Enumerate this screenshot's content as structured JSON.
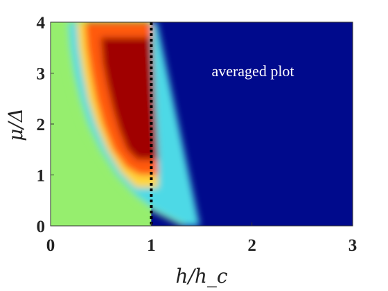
{
  "chart_data": {
    "type": "heatmap",
    "xlabel": "h/h_c",
    "ylabel": "μ/Δ",
    "xlim": [
      0,
      3
    ],
    "ylim": [
      0,
      4
    ],
    "x_ticks": [
      "0",
      "1",
      "2",
      "3"
    ],
    "y_ticks": [
      "0",
      "1",
      "2",
      "3",
      "4"
    ],
    "x_tick_values": [
      0,
      1,
      2,
      3
    ],
    "y_tick_values": [
      0,
      1,
      2,
      3,
      4
    ],
    "annotation": "averaged plot",
    "reference_line": {
      "x": 1,
      "style": "dotted",
      "color": "#000000"
    },
    "background_left_color": "#96ee6e",
    "background_right_color": "#000a8c",
    "colormap": [
      "#000a8c",
      "#1e90ff",
      "#4dd9e6",
      "#96ee6e",
      "#f5e84a",
      "#ffb020",
      "#ff5a10",
      "#e8140a",
      "#a00000"
    ],
    "band_boundaries": [
      {
        "color": "#96ee6e",
        "points": [
          [
            0.12,
            4
          ],
          [
            0.14,
            3.5
          ],
          [
            0.18,
            3
          ],
          [
            0.24,
            2.5
          ],
          [
            0.32,
            2
          ],
          [
            0.45,
            1.5
          ],
          [
            0.62,
            1
          ],
          [
            0.8,
            0.6
          ],
          [
            1,
            0.3
          ],
          [
            1.3,
            0
          ]
        ]
      },
      {
        "color": "#4dd9e6",
        "points": [
          [
            0.18,
            4
          ],
          [
            0.2,
            3.5
          ],
          [
            0.24,
            3
          ],
          [
            0.3,
            2.5
          ],
          [
            0.38,
            2
          ],
          [
            0.5,
            1.5
          ],
          [
            0.66,
            1
          ],
          [
            0.85,
            0.6
          ],
          [
            1.05,
            0.3
          ],
          [
            1.35,
            0
          ]
        ]
      },
      {
        "color": "#ffd53a",
        "points": [
          [
            0.26,
            4
          ],
          [
            0.28,
            3.5
          ],
          [
            0.32,
            3
          ],
          [
            0.37,
            2.5
          ],
          [
            0.45,
            2
          ],
          [
            0.56,
            1.5
          ],
          [
            0.7,
            1.05
          ],
          [
            0.85,
            0.75
          ]
        ]
      },
      {
        "color": "#ff5a10",
        "points": [
          [
            0.34,
            4
          ],
          [
            0.36,
            3.5
          ],
          [
            0.4,
            3
          ],
          [
            0.45,
            2.5
          ],
          [
            0.52,
            2
          ],
          [
            0.62,
            1.5
          ],
          [
            0.75,
            1.15
          ],
          [
            0.88,
            1
          ]
        ]
      },
      {
        "color": "#a00000",
        "points": [
          [
            0.5,
            3.7
          ],
          [
            0.52,
            3.2
          ],
          [
            0.56,
            2.8
          ],
          [
            0.62,
            2.3
          ],
          [
            0.68,
            1.9
          ],
          [
            0.76,
            1.5
          ],
          [
            0.86,
            1.3
          ]
        ]
      }
    ]
  }
}
